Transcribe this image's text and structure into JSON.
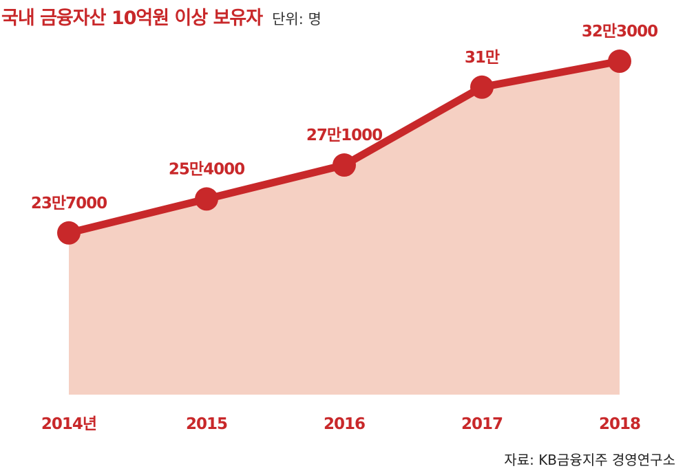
{
  "header": {
    "title": "국내 금융자산 10억원 이상 보유자",
    "unit": "단위: 명"
  },
  "source": "자료: KB금융지주 경영연구소",
  "colors": {
    "accent": "#c8282a",
    "area": "#f5d0c3",
    "text": "#222222"
  },
  "chart_data": {
    "type": "area",
    "categories": [
      "2014년",
      "2015",
      "2016",
      "2017",
      "2018"
    ],
    "values": [
      237000,
      254000,
      271000,
      310000,
      323000
    ],
    "data_labels": [
      "23만7000",
      "25만4000",
      "27만1000",
      "31만",
      "32만3000"
    ],
    "ylim": [
      156000,
      333000
    ],
    "grid": false,
    "legend": "none"
  }
}
